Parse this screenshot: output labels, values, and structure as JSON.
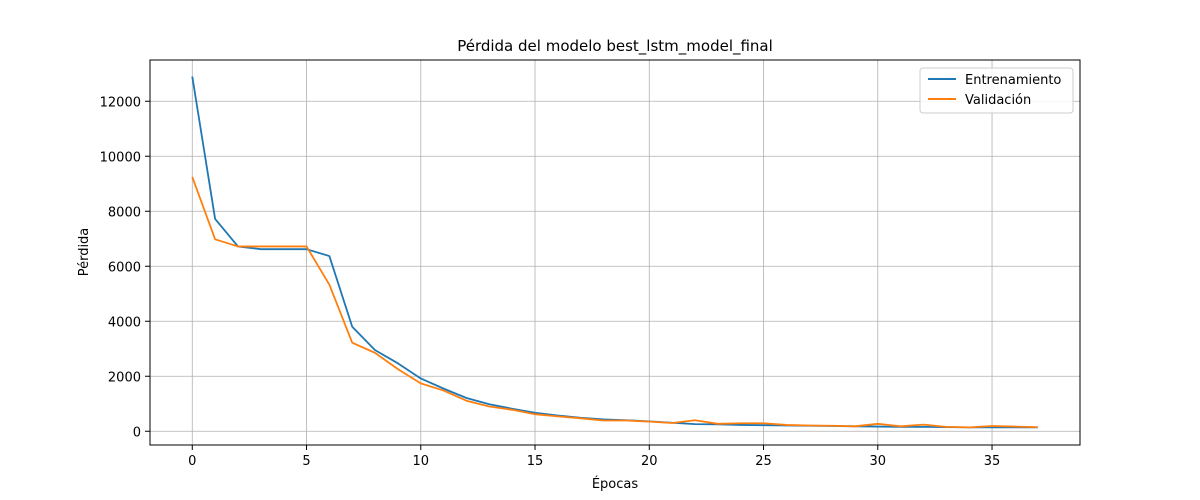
{
  "chart_data": {
    "type": "line",
    "title": "Pérdida del modelo best_lstm_model_final",
    "xlabel": "Épocas",
    "ylabel": "Pérdida",
    "xlim": [
      -1.85,
      38.85
    ],
    "ylim": [
      -500,
      13500
    ],
    "xticks": [
      0,
      5,
      10,
      15,
      20,
      25,
      30,
      35
    ],
    "yticks": [
      0,
      2000,
      4000,
      6000,
      8000,
      10000,
      12000
    ],
    "grid": true,
    "legend_position": "top-right",
    "x": [
      0,
      1,
      2,
      3,
      4,
      5,
      6,
      7,
      8,
      9,
      10,
      11,
      12,
      13,
      14,
      15,
      16,
      17,
      18,
      19,
      20,
      21,
      22,
      23,
      24,
      25,
      26,
      27,
      28,
      29,
      30,
      31,
      32,
      33,
      34,
      35,
      36,
      37
    ],
    "series": [
      {
        "name": "Entrenamiento",
        "color": "#1f77b4",
        "values": [
          12900,
          7720,
          6720,
          6620,
          6620,
          6620,
          6370,
          3800,
          2950,
          2470,
          1920,
          1550,
          1210,
          980,
          820,
          670,
          570,
          490,
          430,
          400,
          360,
          310,
          260,
          250,
          230,
          220,
          210,
          200,
          190,
          180,
          170,
          160,
          160,
          150,
          140,
          140,
          140,
          140
        ]
      },
      {
        "name": "Validación",
        "color": "#ff7f0e",
        "values": [
          9250,
          6980,
          6720,
          6720,
          6720,
          6720,
          5330,
          3220,
          2850,
          2260,
          1740,
          1480,
          1110,
          900,
          780,
          620,
          540,
          470,
          390,
          390,
          350,
          300,
          400,
          270,
          290,
          290,
          230,
          210,
          200,
          180,
          270,
          180,
          240,
          160,
          140,
          190,
          170,
          150
        ]
      }
    ]
  }
}
